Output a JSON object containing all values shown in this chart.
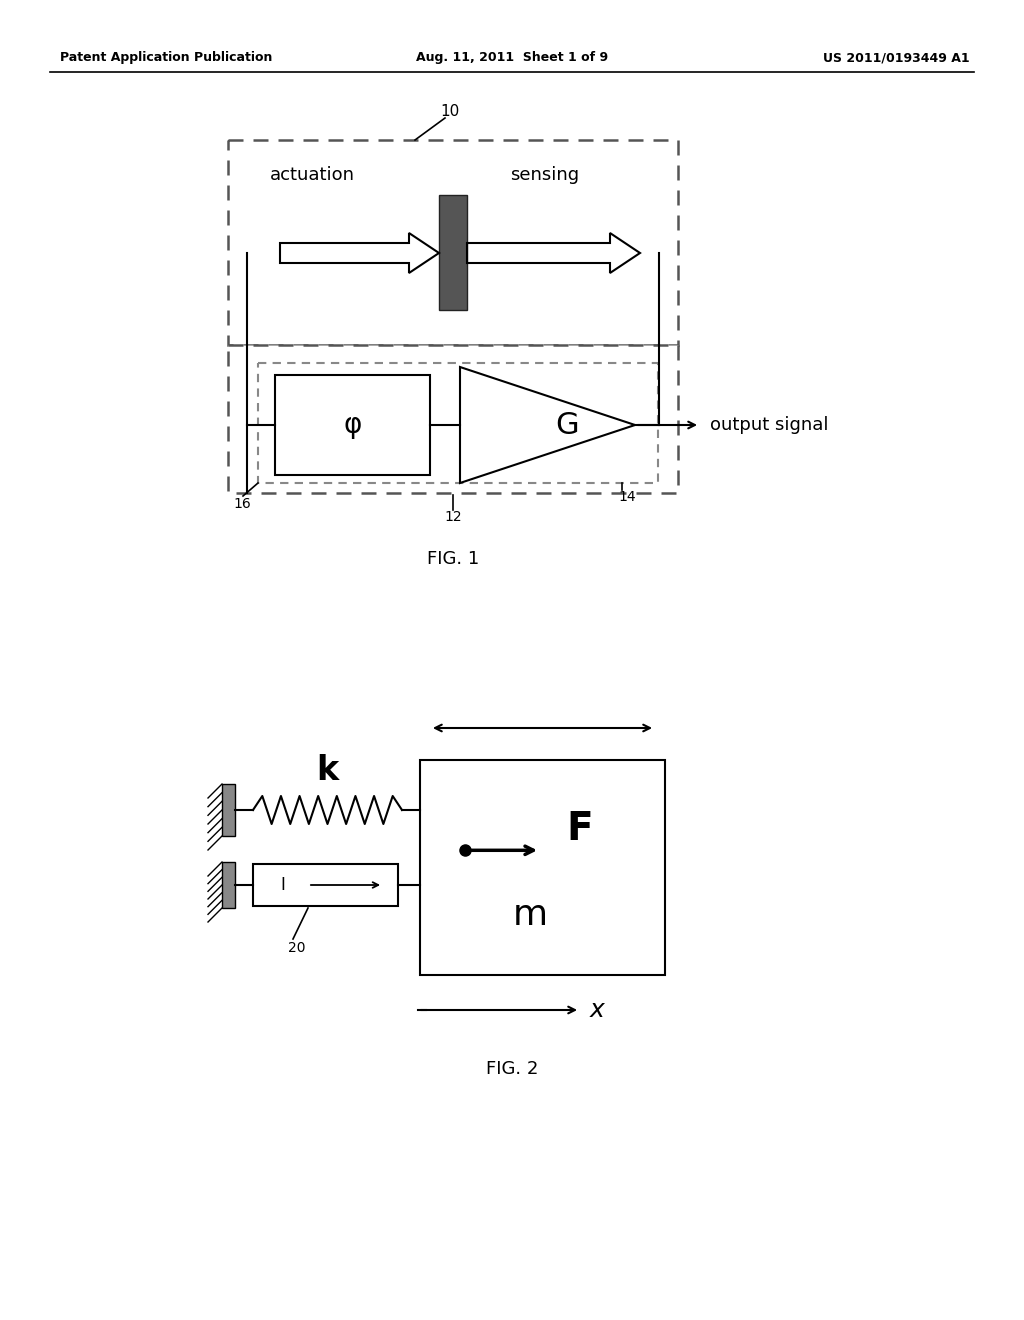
{
  "bg_color": "#ffffff",
  "header_left": "Patent Application Publication",
  "header_center": "Aug. 11, 2011  Sheet 1 of 9",
  "header_right": "US 2011/0193449 A1",
  "fig1_caption": "FIG. 1",
  "fig2_caption": "FIG. 2",
  "label_10": "10",
  "label_12": "12",
  "label_14": "14",
  "label_16": "16",
  "label_20": "20",
  "text_actuation": "actuation",
  "text_sensing": "sensing",
  "text_output_signal": "output signal",
  "text_phi": "φ",
  "text_G": "G",
  "text_k": "k",
  "text_F": "F",
  "text_m": "m",
  "text_I": "I",
  "text_x": "x"
}
